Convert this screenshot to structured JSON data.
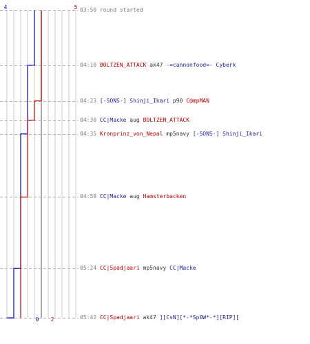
{
  "colors": {
    "team_blue": "#0000cc",
    "team_red": "#cc0000",
    "grid": "#c8c8c8",
    "time_text": "#7f7f7f"
  },
  "scoreboard": {
    "blue_start": "4",
    "red_end": "5",
    "blue_final": "0",
    "red_final": "2",
    "columns": 10,
    "highlight_column": 5
  },
  "chart_data": {
    "type": "line",
    "x_unit": "time",
    "series": [
      {
        "color": "#0000cc",
        "points": [
          [
            "03:50",
            4
          ],
          [
            "04:10",
            3
          ],
          [
            "04:35",
            2
          ],
          [
            "05:24",
            1
          ],
          [
            "05:42",
            0
          ]
        ]
      },
      {
        "color": "#cc0000",
        "points": [
          [
            "03:50",
            5
          ],
          [
            "04:23",
            4
          ],
          [
            "04:30",
            3
          ],
          [
            "04:58",
            2
          ]
        ]
      }
    ],
    "ylim": [
      0,
      10
    ]
  },
  "events": [
    {
      "time": "03:50",
      "message": "round started"
    },
    {
      "time": "04:10",
      "killer": "BOLTZEN_ATTACK",
      "killer_team": "red",
      "weapon": "ak47",
      "victim": "-=cannonfood=- Cyberk",
      "victim_team": "blue"
    },
    {
      "time": "04:23",
      "killer": "[-SONS-] Shinji_Ikari",
      "killer_team": "blue",
      "weapon": "p90",
      "victim": "C@mpMAN",
      "victim_team": "red"
    },
    {
      "time": "04:30",
      "killer": "CC|Macke",
      "killer_team": "blue",
      "weapon": "aug",
      "victim": "BOLTZEN_ATTACK",
      "victim_team": "red"
    },
    {
      "time": "04:35",
      "killer": "Kronprinz_von_Nepal",
      "killer_team": "red",
      "weapon": "mp5navy",
      "victim": "[-SONS-] Shinji_Ikari",
      "victim_team": "blue"
    },
    {
      "time": "04:58",
      "killer": "CC|Macke",
      "killer_team": "blue",
      "weapon": "aug",
      "victim": "Hamsterbacken",
      "victim_team": "red"
    },
    {
      "time": "05:24",
      "killer": "CC|Spadjaari",
      "killer_team": "red",
      "weapon": "mp5navy",
      "victim": "CC|Macke",
      "victim_team": "blue"
    },
    {
      "time": "05:42",
      "killer": "CC|Spadjaari",
      "killer_team": "red",
      "weapon": "ak47",
      "victim": "][CsN][*-*Sp0W*-*][RIP][",
      "victim_team": "blue"
    }
  ]
}
